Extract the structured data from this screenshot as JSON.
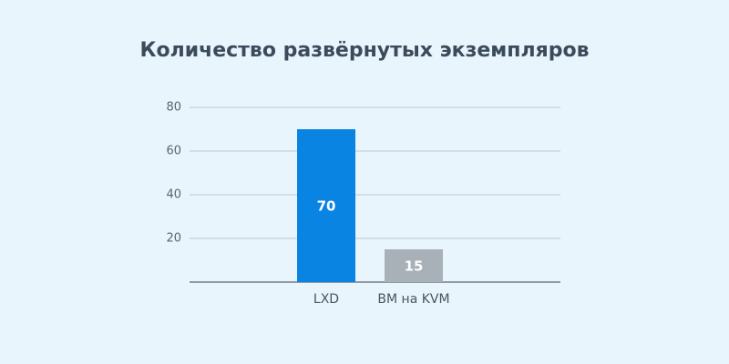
{
  "chart_data": {
    "type": "bar",
    "title": "Количество развёрнутых экземпляров",
    "categories": [
      "LXD",
      "ВМ на KVM"
    ],
    "values": [
      70,
      15
    ],
    "colors": [
      "#0a84e3",
      "#a8b0b8"
    ],
    "ylim": [
      0,
      80
    ],
    "yticks": [
      20,
      40,
      60,
      80
    ],
    "grid": true
  }
}
